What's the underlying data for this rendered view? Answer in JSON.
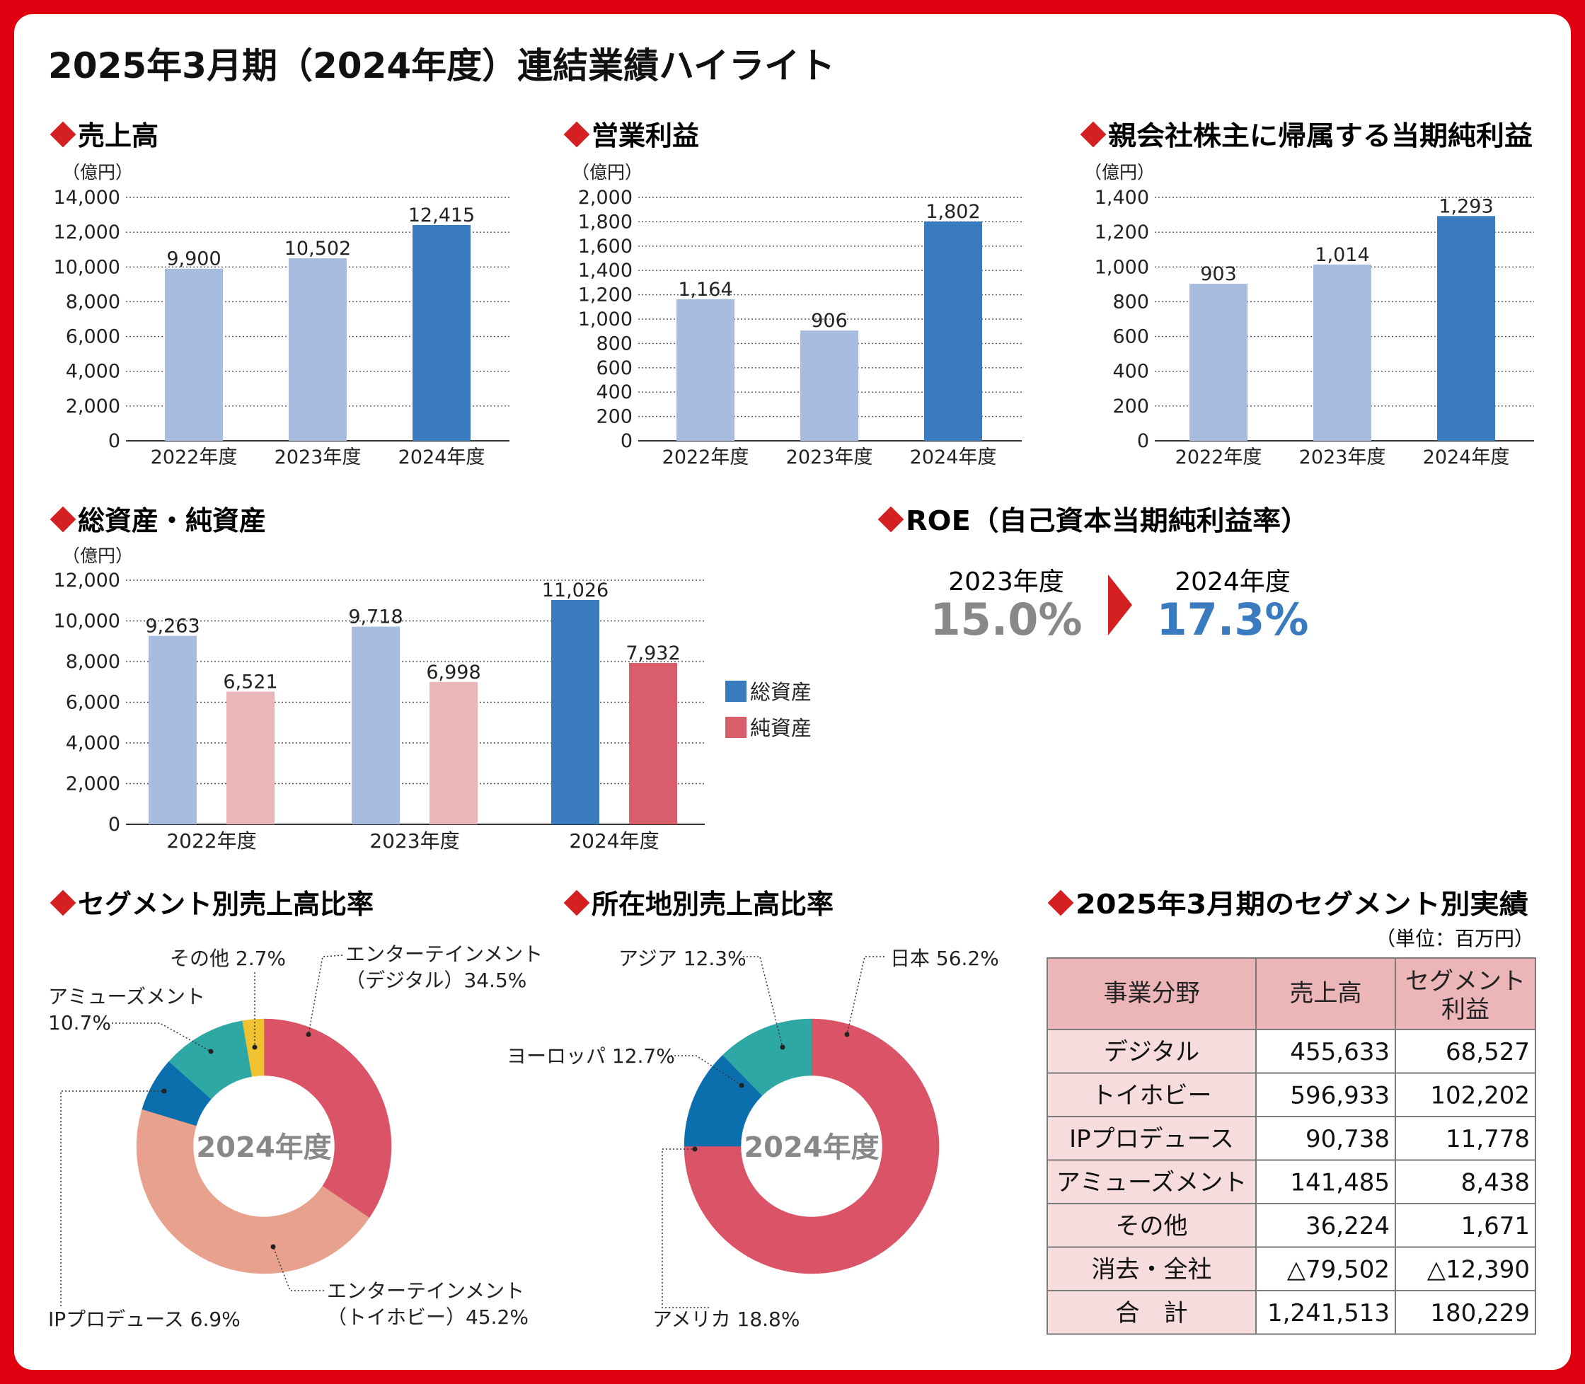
{
  "page_title": "2025年3月期（2024年度）連結業績ハイライト",
  "colors": {
    "frame": "#e00010",
    "marker": "#d42020",
    "bar_light": "#a8bcdf",
    "bar_dark": "#3a7bbf",
    "bar_pink_light": "#ecb5b7",
    "bar_pink_dark": "#da5d6b",
    "roe_gray": "#888888",
    "roe_blue": "#3a7bbf",
    "table_header": "#ecb5b7",
    "table_body": "#f6dcdd",
    "table_border": "#7a7a7a"
  },
  "sections": {
    "sales": "売上高",
    "op_income": "営業利益",
    "net_income": "親会社株主に帰属する当期純利益",
    "assets": "総資産・純資産",
    "roe": "ROE（自己資本当期純利益率）",
    "segment_ratio": "セグメント別売上高比率",
    "region_ratio": "所在地別売上高比率",
    "segment_results": "2025年3月期のセグメント別実績"
  },
  "roe": {
    "prev_label": "2023年度",
    "prev_value": "15.0%",
    "curr_label": "2024年度",
    "curr_value": "17.3%"
  },
  "chart_data": [
    {
      "id": "sales",
      "type": "bar",
      "unit": "（億円）",
      "categories": [
        "2022年度",
        "2023年度",
        "2024年度"
      ],
      "values": [
        9900,
        10502,
        12415
      ],
      "labels": [
        "9,900",
        "10,502",
        "12,415"
      ],
      "ylim": [
        0,
        14000
      ],
      "yticks": [
        0,
        2000,
        4000,
        6000,
        8000,
        10000,
        12000,
        14000
      ],
      "yticklabels": [
        "0",
        "2,000",
        "4,000",
        "6,000",
        "8,000",
        "10,000",
        "12,000",
        "14,000"
      ],
      "grid": "dotted"
    },
    {
      "id": "op_income",
      "type": "bar",
      "unit": "（億円）",
      "categories": [
        "2022年度",
        "2023年度",
        "2024年度"
      ],
      "values": [
        1164,
        906,
        1802
      ],
      "labels": [
        "1,164",
        "906",
        "1,802"
      ],
      "ylim": [
        0,
        2000
      ],
      "yticks": [
        0,
        200,
        400,
        600,
        800,
        1000,
        1200,
        1400,
        1600,
        1800,
        2000
      ],
      "yticklabels": [
        "0",
        "200",
        "400",
        "600",
        "800",
        "1,000",
        "1,200",
        "1,400",
        "1,600",
        "1,800",
        "2,000"
      ],
      "grid": "dotted"
    },
    {
      "id": "net_income",
      "type": "bar",
      "unit": "（億円）",
      "categories": [
        "2022年度",
        "2023年度",
        "2024年度"
      ],
      "values": [
        903,
        1014,
        1293
      ],
      "labels": [
        "903",
        "1,014",
        "1,293"
      ],
      "ylim": [
        0,
        1400
      ],
      "yticks": [
        0,
        200,
        400,
        600,
        800,
        1000,
        1200,
        1400
      ],
      "yticklabels": [
        "0",
        "200",
        "400",
        "600",
        "800",
        "1,000",
        "1,200",
        "1,400"
      ],
      "grid": "dotted"
    },
    {
      "id": "assets",
      "type": "bar",
      "unit": "（億円）",
      "categories": [
        "2022年度",
        "2023年度",
        "2024年度"
      ],
      "series": [
        {
          "name": "総資産",
          "values": [
            9263,
            9718,
            11026
          ],
          "labels": [
            "9,263",
            "9,718",
            "11,026"
          ]
        },
        {
          "name": "純資産",
          "values": [
            6521,
            6998,
            7932
          ],
          "labels": [
            "6,521",
            "6,998",
            "7,932"
          ]
        }
      ],
      "ylim": [
        0,
        12000
      ],
      "yticks": [
        0,
        2000,
        4000,
        6000,
        8000,
        10000,
        12000
      ],
      "yticklabels": [
        "0",
        "2,000",
        "4,000",
        "6,000",
        "8,000",
        "10,000",
        "12,000"
      ],
      "legend": "right",
      "grid": "dotted"
    },
    {
      "id": "segment",
      "type": "pie",
      "center_label": "2024年度",
      "slices": [
        {
          "name": "エンターテインメント（デジタル）",
          "line1": "エンターテインメント",
          "line2": "（デジタル）34.5%",
          "value": 34.5,
          "color": "#da5366"
        },
        {
          "name": "エンターテインメント（トイホビー）",
          "line1": "エンターテインメント",
          "line2": "（トイホビー）45.2%",
          "value": 45.2,
          "color": "#e8a18c"
        },
        {
          "name": "IPプロデュース",
          "line1": "IPプロデュース 6.9%",
          "line2": "",
          "value": 6.9,
          "color": "#0b6fae"
        },
        {
          "name": "アミューズメント",
          "line1": "アミューズメント",
          "line2": "10.7%",
          "value": 10.7,
          "color": "#2ea8a5"
        },
        {
          "name": "その他",
          "line1": "その他 2.7%",
          "line2": "",
          "value": 2.7,
          "color": "#f0c232"
        }
      ]
    },
    {
      "id": "region",
      "type": "pie",
      "center_label": "2024年度",
      "slices": [
        {
          "name": "日本",
          "line1": "日本 56.2%",
          "line2": "",
          "value": 56.2,
          "color": "#da5366"
        },
        {
          "name": "アメリカ",
          "line1": "アメリカ 18.8%",
          "line2": "",
          "value": 18.8,
          "color": "#da5366"
        },
        {
          "name": "ヨーロッパ",
          "line1": "ヨーロッパ 12.7%",
          "line2": "",
          "value": 12.7,
          "color": "#0b6fae"
        },
        {
          "name": "アジア",
          "line1": "アジア 12.3%",
          "line2": "",
          "value": 12.3,
          "color": "#2ea8a5"
        }
      ]
    }
  ],
  "table": {
    "unit": "（単位：百万円）",
    "headers": [
      "事業分野",
      "売上高",
      "セグメント",
      "利益"
    ],
    "rows": [
      [
        "デジタル",
        "455,633",
        "68,527"
      ],
      [
        "トイホビー",
        "596,933",
        "102,202"
      ],
      [
        "IPプロデュース",
        "90,738",
        "11,778"
      ],
      [
        "アミューズメント",
        "141,485",
        "8,438"
      ],
      [
        "その他",
        "36,224",
        "1,671"
      ],
      [
        "消去・全社",
        "△79,502",
        "△12,390"
      ],
      [
        "合　計",
        "1,241,513",
        "180,229"
      ]
    ]
  }
}
